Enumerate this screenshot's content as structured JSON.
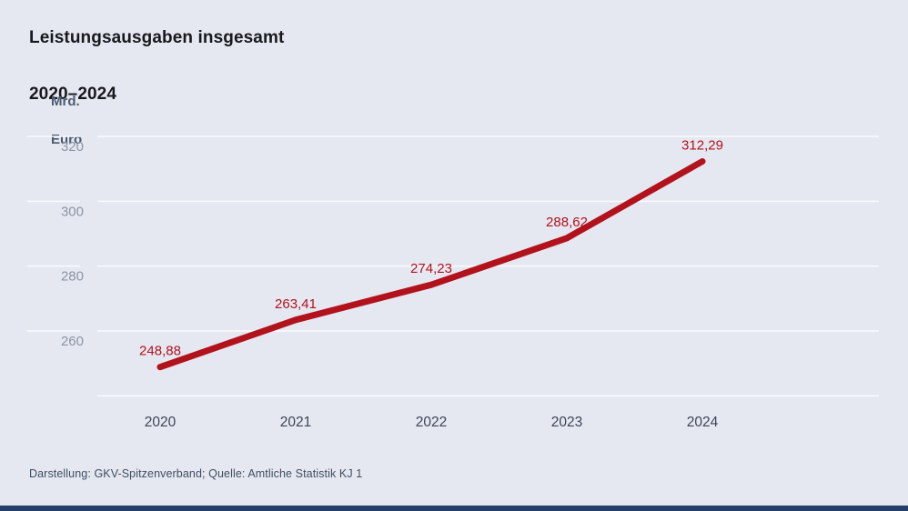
{
  "header": {
    "title_line1": "Leistungsausgaben insgesamt",
    "title_line2": "2020–2024"
  },
  "axis": {
    "unit_line1": "Mrd.",
    "unit_line2": "Euro"
  },
  "footer": {
    "source_text": "Darstellung: GKV-Spitzenverband; Quelle: Amtliche Statistik KJ 1"
  },
  "colors": {
    "background": "#e5e8f1",
    "line": "#b2121b",
    "data_label": "#b2121b",
    "gridline": "#fafbfe",
    "ytick_label": "#8b95a4",
    "xtick_label": "#3b4558",
    "title": "#17191d",
    "unit": "#4a5a70",
    "footer": "#414e60",
    "bottom_bar": "#253e69"
  },
  "chart_data": {
    "type": "line",
    "title": "Leistungsausgaben insgesamt 2020–2024",
    "ylabel": "Mrd. Euro",
    "xlabel": "",
    "x": [
      2020,
      2021,
      2022,
      2023,
      2024
    ],
    "values": [
      248.88,
      263.41,
      274.23,
      288.62,
      312.29
    ],
    "value_labels": [
      "248,88",
      "263,41",
      "274,23",
      "288,62",
      "312,29"
    ],
    "x_labels": [
      "2020",
      "2021",
      "2022",
      "2023",
      "2024"
    ],
    "yticks": [
      320,
      300,
      280,
      260
    ],
    "ytick_labels": [
      "320",
      "300",
      "280",
      "260"
    ],
    "ylim": [
      240,
      324
    ],
    "grid": "horizontal",
    "legend": "none"
  }
}
